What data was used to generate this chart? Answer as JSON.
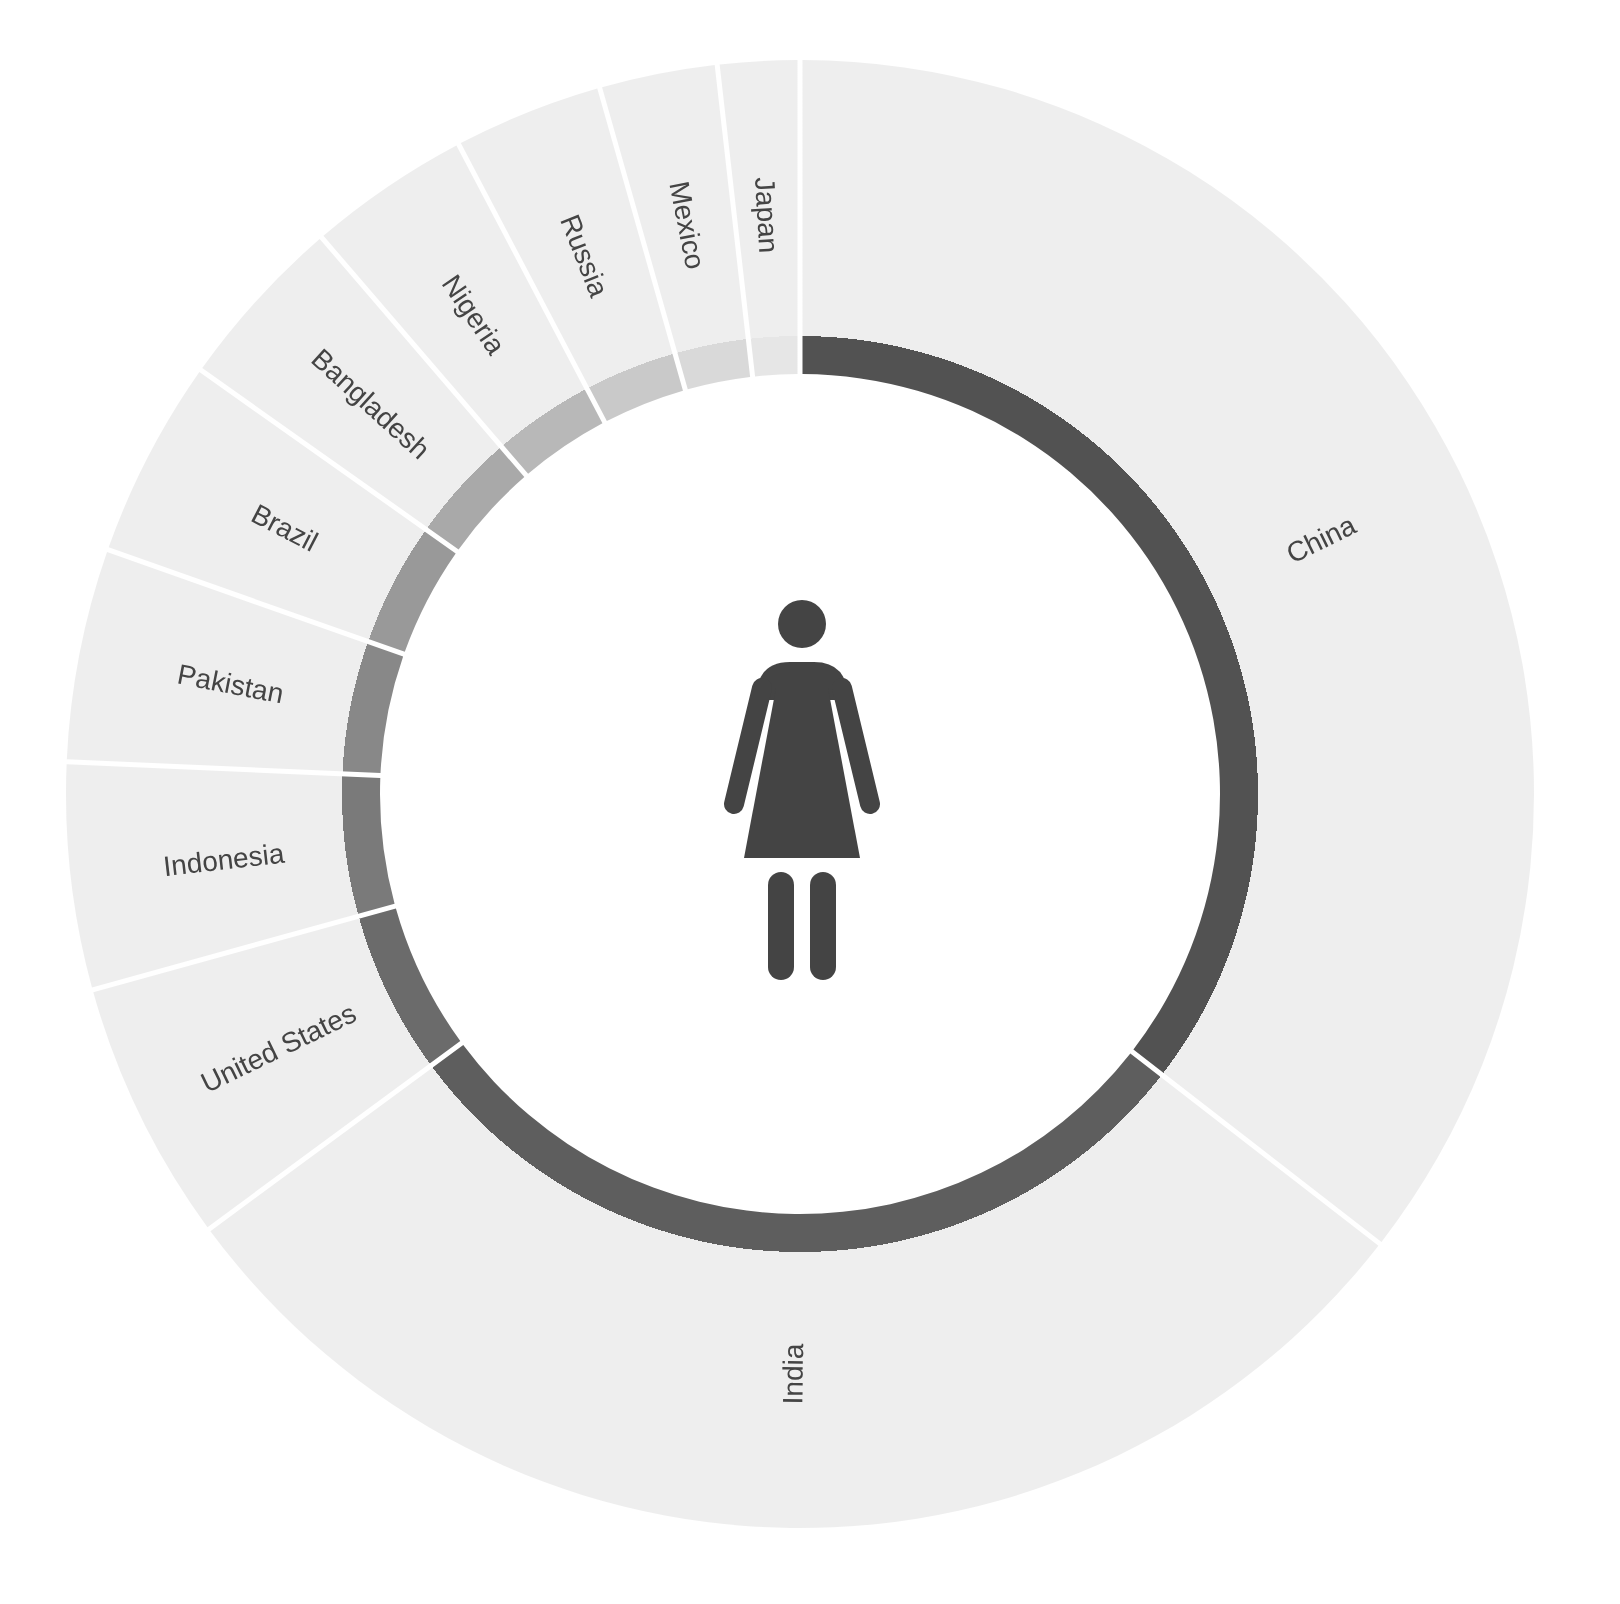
{
  "chart_data": {
    "type": "donut",
    "categories": [
      "China",
      "India",
      "United States",
      "Indonesia",
      "Pakistan",
      "Brazil",
      "Bangladesh",
      "Nigeria",
      "Russia",
      "Mexico",
      "Japan"
    ],
    "values": [
      35.5,
      29.4,
      5.8,
      5.0,
      4.7,
      4.4,
      3.9,
      3.6,
      3.3,
      2.6,
      1.8
    ],
    "colors": [
      "#525252",
      "#5e5e5e",
      "#6b6b6b",
      "#7a7a7a",
      "#888888",
      "#999999",
      "#a9a9a9",
      "#b8b8b8",
      "#c9c9c9",
      "#d9d9d9",
      "#e6e6e6"
    ]
  }
}
